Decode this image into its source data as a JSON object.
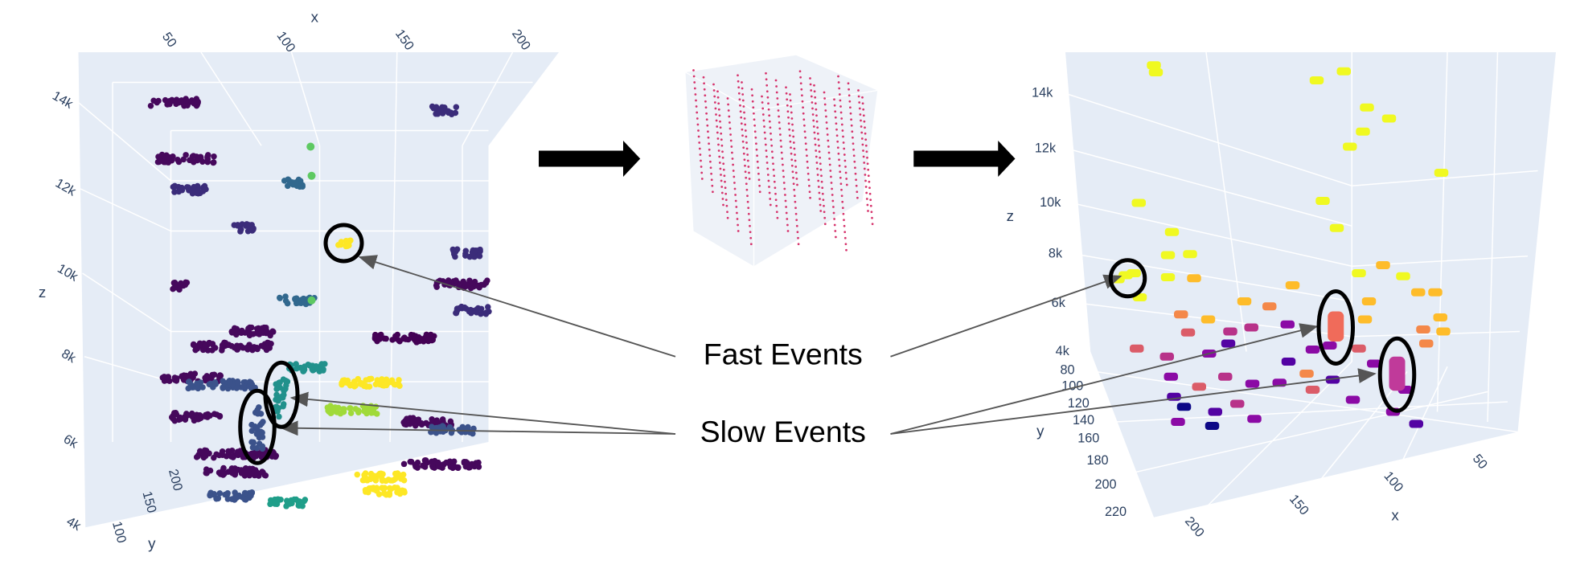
{
  "left_plot": {
    "x_axis": {
      "title": "x",
      "ticks": [
        "50",
        "100",
        "150",
        "200"
      ]
    },
    "y_axis": {
      "title": "y",
      "ticks": [
        "200",
        "150",
        "100"
      ]
    },
    "z_axis": {
      "title": "z",
      "ticks": [
        "14k",
        "12k",
        "10k",
        "8k",
        "6k",
        "4k"
      ]
    }
  },
  "right_plot": {
    "x_axis": {
      "title": "x",
      "ticks": [
        "200",
        "150",
        "100",
        "50"
      ]
    },
    "y_axis": {
      "title": "y",
      "ticks": [
        "80",
        "100",
        "120",
        "140",
        "160",
        "180",
        "200",
        "220"
      ]
    },
    "z_axis": {
      "title": "z",
      "ticks": [
        "14k",
        "12k",
        "10k",
        "8k",
        "6k",
        "4k"
      ]
    }
  },
  "annotations": {
    "fast": "Fast Events",
    "slow": "Slow Events"
  }
}
